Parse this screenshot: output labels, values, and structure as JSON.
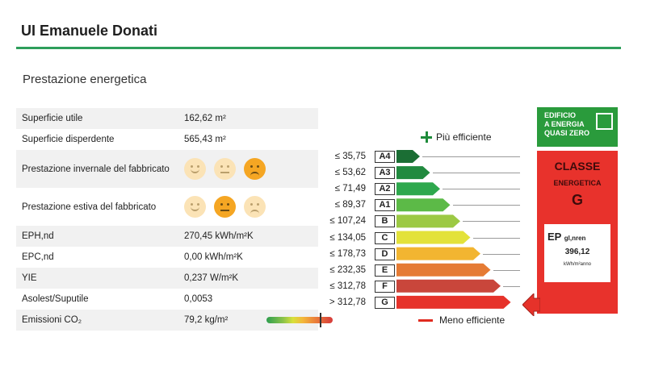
{
  "header": {
    "title": "UI Emanuele Donati"
  },
  "section": {
    "title": "Prestazione energetica"
  },
  "rows": [
    {
      "label": "Superficie utile",
      "value": "162,62 m²"
    },
    {
      "label": "Superficie disperdente",
      "value": "565,43 m²"
    },
    {
      "label": "Prestazione invernale del fabbricato",
      "smileys": [
        "happy",
        "neutral",
        "sad"
      ],
      "active": 2
    },
    {
      "label": "Prestazione estiva del fabbricato",
      "smileys": [
        "happy",
        "neutral",
        "sad"
      ],
      "active": 1
    },
    {
      "label": "EPH,nd",
      "value": "270,45 kWh/m²K"
    },
    {
      "label": "EPC,nd",
      "value": "0,00 kWh/m²K"
    },
    {
      "label": "YIE",
      "value": "0,237 W/m²K"
    },
    {
      "label": "Asolest/Suputile",
      "value": "0,0053"
    },
    {
      "label": "Emissioni CO₂",
      "value": "79,2 kg/m²"
    }
  ],
  "scale": {
    "more_efficient": "Più efficiente",
    "less_efficient": "Meno efficiente",
    "classes": [
      {
        "label": "A4",
        "threshold": "≤ 35,75",
        "color": "#1b6e34"
      },
      {
        "label": "A3",
        "threshold": "≤ 53,62",
        "color": "#218a3f"
      },
      {
        "label": "A2",
        "threshold": "≤ 71,49",
        "color": "#2ea84d"
      },
      {
        "label": "A1",
        "threshold": "≤ 89,37",
        "color": "#5cba47"
      },
      {
        "label": "B",
        "threshold": "≤ 107,24",
        "color": "#9cc944"
      },
      {
        "label": "C",
        "threshold": "≤ 134,05",
        "color": "#e3e23a"
      },
      {
        "label": "D",
        "threshold": "≤ 178,73",
        "color": "#f2b531"
      },
      {
        "label": "E",
        "threshold": "≤ 232,35",
        "color": "#e57b34"
      },
      {
        "label": "F",
        "threshold": "≤ 312,78",
        "color": "#c9463b"
      },
      {
        "label": "G",
        "threshold": "> 312,78",
        "color": "#e6322a"
      }
    ]
  },
  "nzeb": {
    "line1": "EDIFICIO",
    "line2": "A ENERGIA",
    "line3": "QUASI ZERO"
  },
  "result": {
    "title": "CLASSE",
    "subtitle": "ENERGETICA",
    "grade": "G",
    "ep_label": "EP",
    "ep_sub": "gl,nren",
    "ep_value": "396,12",
    "ep_unit": "kWh/m²anno"
  }
}
